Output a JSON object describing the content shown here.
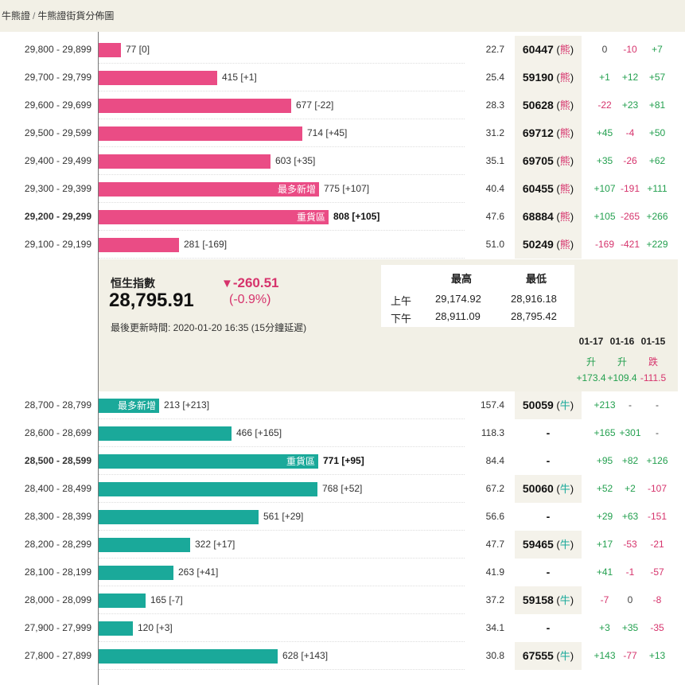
{
  "breadcrumb": {
    "root": "牛熊證",
    "separator": "/",
    "current": "牛熊證街貨分佈圖"
  },
  "colors": {
    "bear": "#ea4c85",
    "bull": "#1aa99a",
    "up": "#23a04f",
    "down": "#d6336c"
  },
  "bear_rows": [
    {
      "range": "29,800 - 29,899",
      "count": "77 [0]",
      "count_value": 77,
      "tag": "",
      "bold": false,
      "ratio": "22.7",
      "code": "60447",
      "type": "熊",
      "changes": [
        "0",
        "-10",
        "+7"
      ]
    },
    {
      "range": "29,700 - 29,799",
      "count": "415 [+1]",
      "count_value": 415,
      "tag": "",
      "bold": false,
      "ratio": "25.4",
      "code": "59190",
      "type": "熊",
      "changes": [
        "+1",
        "+12",
        "+57"
      ]
    },
    {
      "range": "29,600 - 29,699",
      "count": "677 [-22]",
      "count_value": 677,
      "tag": "",
      "bold": false,
      "ratio": "28.3",
      "code": "50628",
      "type": "熊",
      "changes": [
        "-22",
        "+23",
        "+81"
      ]
    },
    {
      "range": "29,500 - 29,599",
      "count": "714 [+45]",
      "count_value": 714,
      "tag": "",
      "bold": false,
      "ratio": "31.2",
      "code": "69712",
      "type": "熊",
      "changes": [
        "+45",
        "-4",
        "+50"
      ]
    },
    {
      "range": "29,400 - 29,499",
      "count": "603 [+35]",
      "count_value": 603,
      "tag": "",
      "bold": false,
      "ratio": "35.1",
      "code": "69705",
      "type": "熊",
      "changes": [
        "+35",
        "-26",
        "+62"
      ]
    },
    {
      "range": "29,300 - 29,399",
      "count": "775 [+107]",
      "count_value": 775,
      "tag": "最多新增",
      "bold": false,
      "ratio": "40.4",
      "code": "60455",
      "type": "熊",
      "changes": [
        "+107",
        "-191",
        "+111"
      ]
    },
    {
      "range": "29,200 - 29,299",
      "count": "808 [+105]",
      "count_value": 808,
      "tag": "重貨區",
      "bold": true,
      "ratio": "47.6",
      "code": "68884",
      "type": "熊",
      "changes": [
        "+105",
        "-265",
        "+266"
      ]
    },
    {
      "range": "29,100 - 29,199",
      "count": "281 [-169]",
      "count_value": 281,
      "tag": "",
      "bold": false,
      "ratio": "51.0",
      "code": "50249",
      "type": "熊",
      "changes": [
        "-169",
        "-421",
        "+229"
      ]
    }
  ],
  "index": {
    "name": "恒生指數",
    "value": "28,795.91",
    "arrow": "▼",
    "change": "-260.51",
    "change_pct": "(-0.9%)",
    "updated": "最後更新時間: 2020-01-20 16:35 (15分鐘延遲)",
    "high_label": "最高",
    "low_label": "最低",
    "sessions": [
      {
        "label": "上午",
        "high": "29,174.92",
        "low": "28,916.18"
      },
      {
        "label": "下午",
        "high": "28,911.09",
        "low": "28,795.42"
      }
    ],
    "days": [
      {
        "date": "01-17",
        "status": "升",
        "move": "+173.4",
        "dir": "up"
      },
      {
        "date": "01-16",
        "status": "升",
        "move": "+109.4",
        "dir": "up"
      },
      {
        "date": "01-15",
        "status": "跌",
        "move": "-111.5",
        "dir": "down"
      }
    ]
  },
  "bull_rows": [
    {
      "range": "28,700 - 28,799",
      "count": "213 [+213]",
      "count_value": 213,
      "tag": "最多新增",
      "bold": false,
      "ratio": "157.4",
      "code": "50059",
      "type": "牛",
      "changes": [
        "+213",
        "-",
        "-"
      ]
    },
    {
      "range": "28,600 - 28,699",
      "count": "466 [+165]",
      "count_value": 466,
      "tag": "",
      "bold": false,
      "ratio": "118.3",
      "code": "-",
      "type": "",
      "changes": [
        "+165",
        "+301",
        "-"
      ]
    },
    {
      "range": "28,500 - 28,599",
      "count": "771 [+95]",
      "count_value": 771,
      "tag": "重貨區",
      "bold": true,
      "ratio": "84.4",
      "code": "-",
      "type": "",
      "changes": [
        "+95",
        "+82",
        "+126"
      ]
    },
    {
      "range": "28,400 - 28,499",
      "count": "768 [+52]",
      "count_value": 768,
      "tag": "",
      "bold": false,
      "ratio": "67.2",
      "code": "50060",
      "type": "牛",
      "changes": [
        "+52",
        "+2",
        "-107"
      ]
    },
    {
      "range": "28,300 - 28,399",
      "count": "561 [+29]",
      "count_value": 561,
      "tag": "",
      "bold": false,
      "ratio": "56.6",
      "code": "-",
      "type": "",
      "changes": [
        "+29",
        "+63",
        "-151"
      ]
    },
    {
      "range": "28,200 - 28,299",
      "count": "322 [+17]",
      "count_value": 322,
      "tag": "",
      "bold": false,
      "ratio": "47.7",
      "code": "59465",
      "type": "牛",
      "changes": [
        "+17",
        "-53",
        "-21"
      ]
    },
    {
      "range": "28,100 - 28,199",
      "count": "263 [+41]",
      "count_value": 263,
      "tag": "",
      "bold": false,
      "ratio": "41.9",
      "code": "-",
      "type": "",
      "changes": [
        "+41",
        "-1",
        "-57"
      ]
    },
    {
      "range": "28,000 - 28,099",
      "count": "165 [-7]",
      "count_value": 165,
      "tag": "",
      "bold": false,
      "ratio": "37.2",
      "code": "59158",
      "type": "牛",
      "changes": [
        "-7",
        "0",
        "-8"
      ]
    },
    {
      "range": "27,900 - 27,999",
      "count": "120 [+3]",
      "count_value": 120,
      "tag": "",
      "bold": false,
      "ratio": "34.1",
      "code": "-",
      "type": "",
      "changes": [
        "+3",
        "+35",
        "-35"
      ]
    },
    {
      "range": "27,800 - 27,899",
      "count": "628 [+143]",
      "count_value": 628,
      "tag": "",
      "bold": false,
      "ratio": "30.8",
      "code": "67555",
      "type": "牛",
      "changes": [
        "+143",
        "-77",
        "+13"
      ]
    }
  ]
}
